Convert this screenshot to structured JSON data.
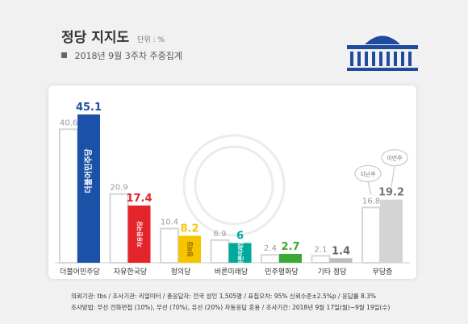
{
  "header": {
    "title": "정당 지지도",
    "unit": "단위 : %",
    "subtitle": "2018년 9월 3주차 주중집계"
  },
  "footer": {
    "line1": "의뢰기관: tbs / 조사기관: 리얼미터 / 총응답자: 전국 성인 1,505명 / 표집오차: 95% 신뢰수준±2.5%p / 응답률 8.3%",
    "line2": "조사방법: 무선 전화면접 (10%), 무선 (70%), 유선 (20%) 자동응답 혼용 / 조사기간: 2018년 9월 17일(월)~9월 19일(수)"
  },
  "icons": [
    "national-assembly-icon",
    "watermark-seal"
  ],
  "chart_data": {
    "type": "bar",
    "categories": [
      "더불어민주당",
      "자유한국당",
      "정의당",
      "바른미래당",
      "민주평화당",
      "기타 정당",
      "무당층"
    ],
    "series": [
      {
        "values": [
          40.6,
          20.9,
          10.4,
          6.9,
          2.4,
          2.1,
          16.8
        ]
      },
      {
        "values": [
          45.1,
          17.4,
          8.2,
          6.0,
          2.7,
          1.4,
          19.2
        ]
      }
    ],
    "colors": [
      "#1b52a8",
      "#e3242b",
      "#f6c500",
      "#00a99d",
      "#3aa935",
      "#bdbdbd",
      "#d4d4d4"
    ],
    "bubbles": [
      {
        "category": "무당층",
        "series": 0,
        "label": "지난주"
      },
      {
        "category": "무당층",
        "series": 1,
        "label": "이번주"
      }
    ],
    "bar_labels": [
      "더불어민주당",
      "자유한국당",
      "정의당",
      "바른미래당",
      "민주평화당"
    ],
    "grid": false,
    "legend": "none",
    "ylim": [
      0,
      50
    ]
  }
}
